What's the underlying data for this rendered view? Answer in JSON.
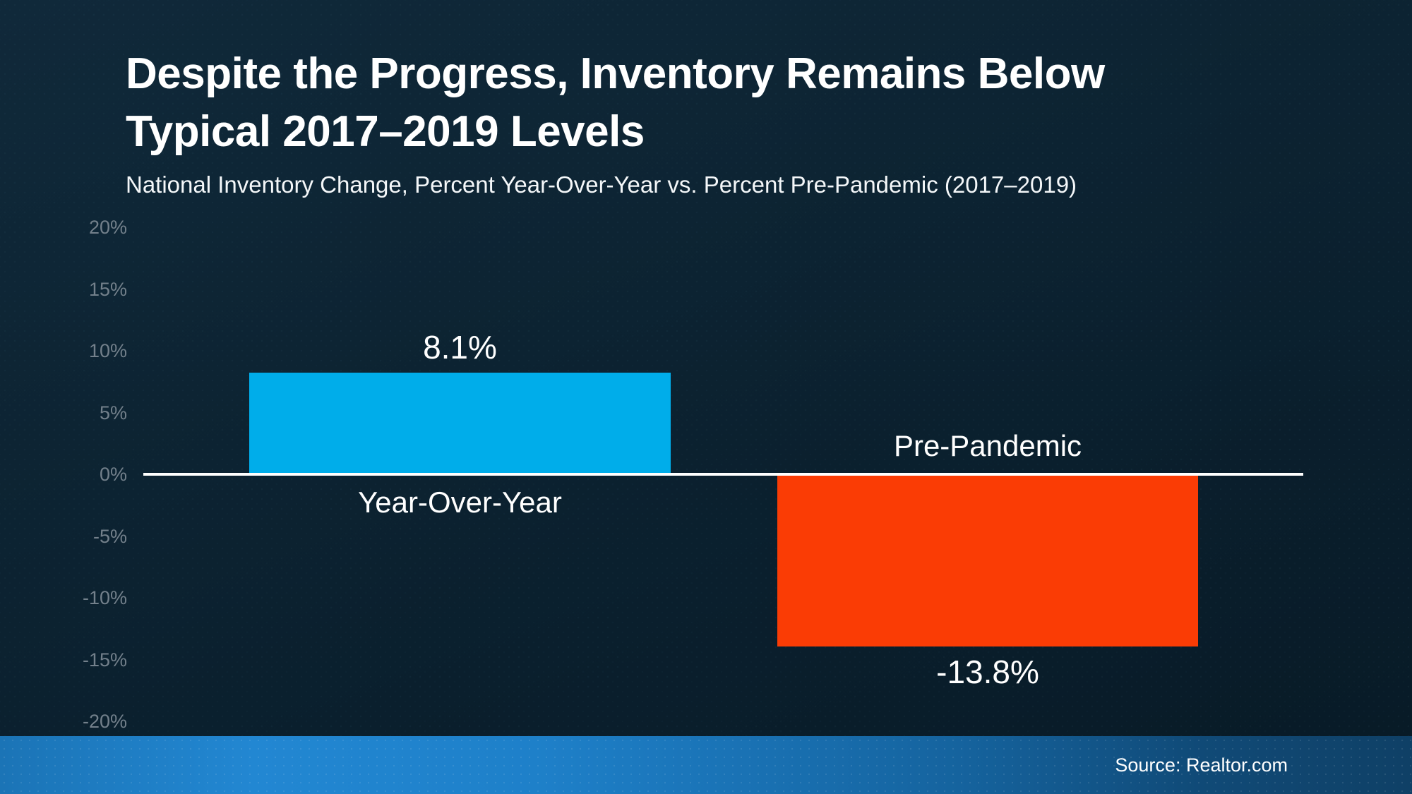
{
  "slide": {
    "title_lines": [
      "Despite the Progress, Inventory Remains Below",
      "Typical 2017–2019 Levels"
    ],
    "subtitle": "National Inventory Change, Percent Year-Over-Year vs. Percent Pre-Pandemic (2017–2019)",
    "source": "Source: Realtor.com"
  },
  "colors": {
    "background": "#0c2231",
    "title_text": "#ffffff",
    "axis_tick_text": "#73808b",
    "zero_line": "#ffffff",
    "bar_positive": "#00adea",
    "bar_negative": "#fa3c05",
    "footer_left": "#2287d2",
    "footer_right": "#0f4066"
  },
  "chart_data": {
    "type": "bar",
    "title": "Despite the Progress, Inventory Remains Below Typical 2017–2019 Levels",
    "subtitle": "National Inventory Change, Percent Year-Over-Year vs. Percent Pre-Pandemic (2017–2019)",
    "categories": [
      "Year-Over-Year",
      "Pre-Pandemic"
    ],
    "values": [
      8.1,
      -13.8
    ],
    "value_labels": [
      "8.1%",
      "-13.8%"
    ],
    "bar_colors": [
      "#00adea",
      "#fa3c05"
    ],
    "xlabel": "",
    "ylabel": "",
    "ylim": [
      -20,
      20
    ],
    "yticks": [
      {
        "value": 20,
        "label": "20%"
      },
      {
        "value": 15,
        "label": "15%"
      },
      {
        "value": 10,
        "label": "10%"
      },
      {
        "value": 5,
        "label": "5%"
      },
      {
        "value": 0,
        "label": "0%"
      },
      {
        "value": -5,
        "label": "-5%"
      },
      {
        "value": -10,
        "label": "-10%"
      },
      {
        "value": -15,
        "label": "-15%"
      },
      {
        "value": -20,
        "label": "-20%"
      }
    ],
    "grid": false,
    "legend": "none",
    "zero_line_color": "#ffffff",
    "source": "Source: Realtor.com"
  }
}
